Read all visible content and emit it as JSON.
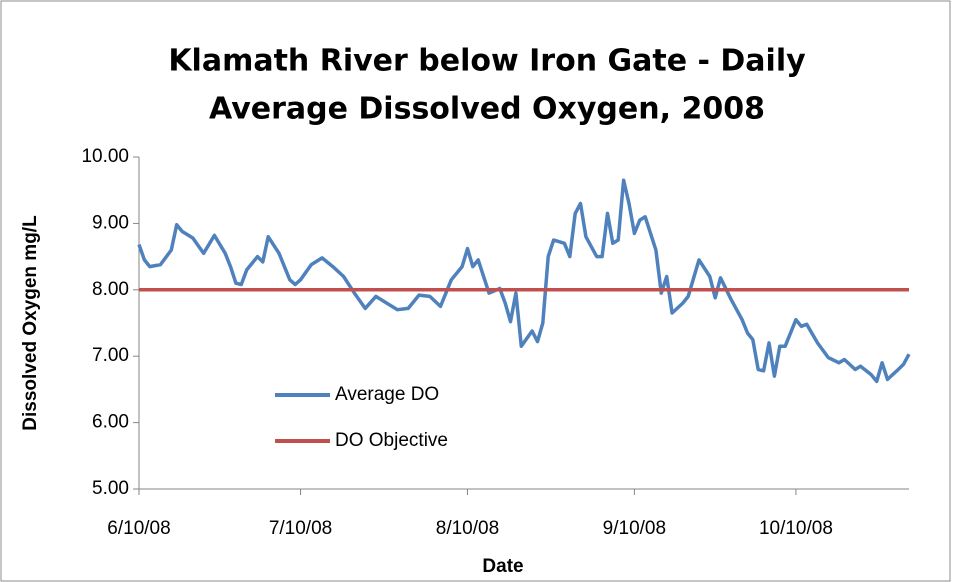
{
  "chart_data": {
    "type": "line",
    "title": [
      "Klamath River below Iron Gate - Daily",
      "Average Dissolved Oxygen, 2008"
    ],
    "x_label": "Date",
    "y_label": "Dissolved Oxygen mg/L",
    "xlim": [
      "6/10/08",
      "10/31/08"
    ],
    "xticks": [
      "6/10/08",
      "7/10/08",
      "8/10/08",
      "9/10/08",
      "10/10/08"
    ],
    "ylim": [
      5,
      10
    ],
    "yticks": [
      {
        "value": 5,
        "label": "5.00"
      },
      {
        "value": 6,
        "label": "6.00"
      },
      {
        "value": 7,
        "label": "7.00"
      },
      {
        "value": 8,
        "label": "8.00"
      },
      {
        "value": 9,
        "label": "9.00"
      },
      {
        "value": 10,
        "label": "10.00"
      }
    ],
    "grid": false,
    "legend": "left",
    "series": [
      {
        "name": "Average DO",
        "color": "#4f81bd",
        "x": [
          "6/10/08",
          "6/11/08",
          "6/12/08",
          "6/14/08",
          "6/16/08",
          "6/17/08",
          "6/18/08",
          "6/20/08",
          "6/22/08",
          "6/24/08",
          "6/26/08",
          "6/27/08",
          "6/28/08",
          "6/29/08",
          "6/30/08",
          "7/2/08",
          "7/3/08",
          "7/4/08",
          "7/6/08",
          "7/8/08",
          "7/9/08",
          "7/10/08",
          "7/12/08",
          "7/14/08",
          "7/16/08",
          "7/18/08",
          "7/20/08",
          "7/22/08",
          "7/24/08",
          "7/26/08",
          "7/28/08",
          "7/30/08",
          "8/1/08",
          "8/3/08",
          "8/5/08",
          "8/7/08",
          "8/9/08",
          "8/10/08",
          "8/11/08",
          "8/12/08",
          "8/14/08",
          "8/16/08",
          "8/17/08",
          "8/18/08",
          "8/19/08",
          "8/20/08",
          "8/22/08",
          "8/23/08",
          "8/24/08",
          "8/25/08",
          "8/26/08",
          "8/28/08",
          "8/29/08",
          "8/30/08",
          "8/31/08",
          "9/1/08",
          "9/3/08",
          "9/4/08",
          "9/5/08",
          "9/6/08",
          "9/7/08",
          "9/8/08",
          "9/9/08",
          "9/10/08",
          "9/11/08",
          "9/12/08",
          "9/14/08",
          "9/15/08",
          "9/16/08",
          "9/17/08",
          "9/19/08",
          "9/20/08",
          "9/22/08",
          "9/24/08",
          "9/25/08",
          "9/26/08",
          "9/28/08",
          "9/30/08",
          "10/1/08",
          "10/2/08",
          "10/3/08",
          "10/4/08",
          "10/5/08",
          "10/6/08",
          "10/7/08",
          "10/8/08",
          "10/10/08",
          "10/11/08",
          "10/12/08",
          "10/14/08",
          "10/16/08",
          "10/18/08",
          "10/19/08",
          "10/21/08",
          "10/22/08",
          "10/24/08",
          "10/25/08",
          "10/26/08",
          "10/27/08",
          "10/29/08",
          "10/30/08",
          "10/31/08"
        ],
        "values": [
          8.68,
          8.45,
          8.35,
          8.38,
          8.6,
          8.98,
          8.88,
          8.78,
          8.55,
          8.82,
          8.55,
          8.35,
          8.1,
          8.08,
          8.3,
          8.5,
          8.42,
          8.8,
          8.55,
          8.15,
          8.08,
          8.15,
          8.38,
          8.48,
          8.35,
          8.2,
          7.95,
          7.72,
          7.9,
          7.8,
          7.7,
          7.72,
          7.92,
          7.9,
          7.75,
          8.15,
          8.35,
          8.62,
          8.35,
          8.45,
          7.95,
          8.02,
          7.8,
          7.52,
          7.95,
          7.15,
          7.38,
          7.22,
          7.5,
          8.5,
          8.75,
          8.7,
          8.5,
          9.15,
          9.3,
          8.8,
          8.5,
          8.5,
          9.15,
          8.7,
          8.75,
          9.65,
          9.3,
          8.85,
          9.05,
          9.1,
          8.6,
          7.95,
          8.2,
          7.65,
          7.8,
          7.9,
          8.45,
          8.2,
          7.88,
          8.18,
          7.85,
          7.55,
          7.35,
          7.25,
          6.8,
          6.78,
          7.2,
          6.7,
          7.15,
          7.15,
          7.55,
          7.45,
          7.48,
          7.2,
          6.98,
          6.9,
          6.95,
          6.8,
          6.85,
          6.72,
          6.62,
          6.9,
          6.65,
          6.8,
          6.88,
          7.03
        ]
      },
      {
        "name": "DO Objective",
        "color": "#c0504d",
        "x": [
          "6/10/08",
          "10/31/08"
        ],
        "values": [
          8,
          8
        ]
      }
    ]
  }
}
